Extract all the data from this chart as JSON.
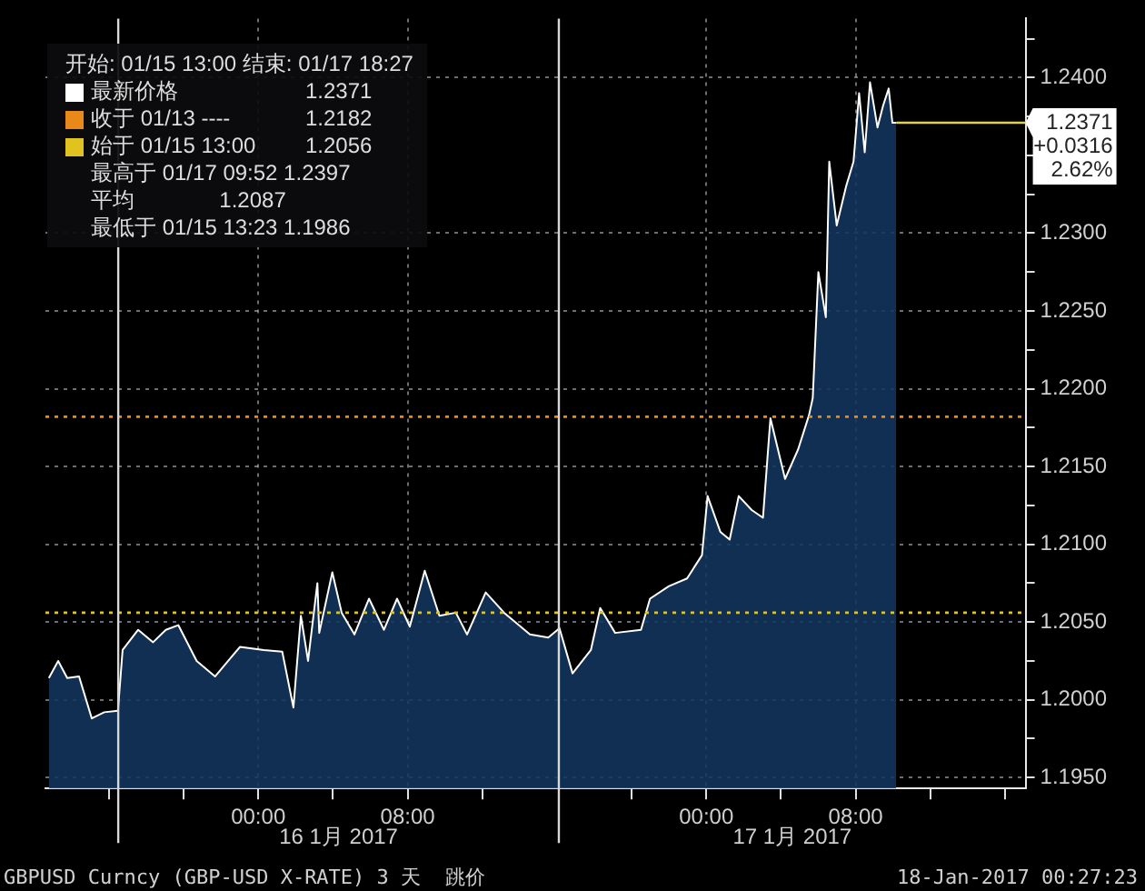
{
  "chart_data": {
    "type": "area",
    "legend_title": "开始: 01/15 13:00 结束: 01/17 18:27",
    "series": [
      {
        "name": "最新价格",
        "color": "#ffffff",
        "x": [
          "2017-01-15T12:47",
          "2017-01-15T13:17",
          "2017-01-15T13:46",
          "2017-01-15T14:24",
          "2017-01-15T15:05",
          "2017-01-15T15:45",
          "2017-01-15T16:29",
          "2017-01-15T16:44",
          "2017-01-15T17:34",
          "2017-01-15T18:22",
          "2017-01-15T19:03",
          "2017-01-15T19:43",
          "2017-01-15T20:42",
          "2017-01-15T21:41",
          "2017-01-15T23:01",
          "2017-01-16T00:18",
          "2017-01-16T01:17",
          "2017-01-16T01:53",
          "2017-01-16T02:17",
          "2017-01-16T02:40",
          "2017-01-16T03:10",
          "2017-01-16T03:16",
          "2017-01-16T03:58",
          "2017-01-16T04:28",
          "2017-01-16T05:09",
          "2017-01-16T05:56",
          "2017-01-16T06:44",
          "2017-01-16T07:26",
          "2017-01-16T08:07",
          "2017-01-16T08:55",
          "2017-01-16T09:42",
          "2017-01-16T10:35",
          "2017-01-16T11:11",
          "2017-01-16T12:11",
          "2017-01-16T13:10",
          "2017-01-16T14:33",
          "2017-01-16T15:32",
          "2017-01-16T16:08",
          "2017-01-16T16:50",
          "2017-01-16T17:49",
          "2017-01-16T18:19",
          "2017-01-16T19:07",
          "2017-01-16T20:30",
          "2017-01-16T20:59",
          "2017-01-16T21:59",
          "2017-01-16T22:58",
          "2017-01-16T23:46",
          "2017-01-17T00:04",
          "2017-01-17T00:45",
          "2017-01-17T01:15",
          "2017-01-17T01:44",
          "2017-01-17T02:26",
          "2017-01-17T03:02",
          "2017-01-17T03:26",
          "2017-01-17T04:13",
          "2017-01-17T04:55",
          "2017-01-17T05:30",
          "2017-01-17T05:42",
          "2017-01-17T06:00",
          "2017-01-17T06:24",
          "2017-01-17T06:35",
          "2017-01-17T06:59",
          "2017-01-17T07:29",
          "2017-01-17T07:53",
          "2017-01-17T08:11",
          "2017-01-17T08:29",
          "2017-01-17T08:46",
          "2017-01-17T09:10",
          "2017-01-17T09:28",
          "2017-01-17T09:46",
          "2017-01-17T09:58",
          "2017-01-17T10:10"
        ],
        "values": [
          1.2014,
          1.2025,
          1.2014,
          1.2015,
          1.1988,
          1.1992,
          1.1993,
          1.2032,
          1.2045,
          1.2037,
          1.2045,
          1.2048,
          1.2025,
          1.2015,
          1.2034,
          1.2032,
          1.2031,
          1.1995,
          1.2054,
          1.2025,
          1.2075,
          1.2043,
          1.2082,
          1.2056,
          1.2042,
          1.2065,
          1.2045,
          1.2065,
          1.2047,
          1.2083,
          1.2054,
          1.2056,
          1.2042,
          1.2069,
          1.2056,
          1.2042,
          1.204,
          1.2046,
          1.2017,
          1.2032,
          1.2059,
          1.2043,
          1.2045,
          1.2065,
          1.2073,
          1.2078,
          1.2093,
          1.2131,
          1.2108,
          1.2103,
          1.2131,
          1.2122,
          1.2117,
          1.2181,
          1.2142,
          1.2161,
          1.2183,
          1.2194,
          1.2275,
          1.2246,
          1.2346,
          1.2305,
          1.233,
          1.2346,
          1.239,
          1.2352,
          1.2397,
          1.2368,
          1.2382,
          1.2393,
          1.2371,
          1.2371
        ]
      }
    ],
    "xlim": [
      "2017-01-15T12:36",
      "2017-01-17T17:06"
    ],
    "xticks": [
      {
        "value": "2017-01-15T16:00",
        "label": null
      },
      {
        "value": "2017-01-15T20:00",
        "label": null
      },
      {
        "value": "2017-01-16T00:00",
        "label": "00:00"
      },
      {
        "value": "2017-01-16T04:00",
        "label": null
      },
      {
        "value": "2017-01-16T08:00",
        "label": "08:00"
      },
      {
        "value": "2017-01-16T12:00",
        "label": null
      },
      {
        "value": "2017-01-16T20:00",
        "label": null
      },
      {
        "value": "2017-01-17T00:00",
        "label": "00:00"
      },
      {
        "value": "2017-01-17T04:00",
        "label": null
      },
      {
        "value": "2017-01-17T08:00",
        "label": "08:00"
      },
      {
        "value": "2017-01-17T12:00",
        "label": null
      },
      {
        "value": "2017-01-17T16:00",
        "label": null
      }
    ],
    "ylim": [
      1.1943,
      1.2438
    ],
    "yticks": [
      {
        "value": 1.195,
        "label": "1.1950"
      },
      {
        "value": 1.1975,
        "label": null
      },
      {
        "value": 1.2,
        "label": "1.2000"
      },
      {
        "value": 1.2025,
        "label": null
      },
      {
        "value": 1.205,
        "label": "1.2050"
      },
      {
        "value": 1.2075,
        "label": null
      },
      {
        "value": 1.21,
        "label": "1.2100"
      },
      {
        "value": 1.2125,
        "label": null
      },
      {
        "value": 1.215,
        "label": "1.2150"
      },
      {
        "value": 1.2175,
        "label": null
      },
      {
        "value": 1.22,
        "label": "1.2200"
      },
      {
        "value": 1.2225,
        "label": null
      },
      {
        "value": 1.225,
        "label": "1.2250"
      },
      {
        "value": 1.2275,
        "label": null
      },
      {
        "value": 1.23,
        "label": "1.2300"
      },
      {
        "value": 1.2325,
        "label": null
      },
      {
        "value": 1.235,
        "label": null
      },
      {
        "value": 1.2375,
        "label": null
      },
      {
        "value": 1.24,
        "label": "1.2400"
      },
      {
        "value": 1.2425,
        "label": null
      }
    ],
    "grid": true,
    "legend": "top left",
    "line_style": "solid",
    "marker": "none",
    "ref_lines": [
      {
        "axis": "y",
        "value": 1.2182,
        "label": "收于 01/13 ----",
        "color": "#e8891a",
        "line_style": "dotted"
      },
      {
        "axis": "y",
        "value": 1.2056,
        "label": "始于 01/15 13:00",
        "color": "#e0c31e",
        "line_style": "dotted"
      },
      {
        "axis": "x",
        "value": "2017-01-15T16:30",
        "color": "#d8d8d8",
        "line_style": "solid"
      },
      {
        "axis": "x",
        "value": "2017-01-16T16:06",
        "color": "#d8d8d8",
        "line_style": "solid"
      }
    ],
    "annotations": [
      "1.2371",
      "1.2182",
      "1.2056",
      "最高于 01/17 09:52 1.2397",
      "平均              1.2087",
      "最低于 01/15 13:23 1.1986",
      {
        "text": "1.2371",
        "x": "2017-01-17T10:10",
        "y": 1.2371
      },
      "+0.0316",
      "2.62%",
      "GBPUSD Curncy (GBP-USD X-RATE) 3 天  跳价",
      "18-Jan-2017 00:27:23",
      "16 1月 2017",
      "17 1月 2017"
    ]
  }
}
